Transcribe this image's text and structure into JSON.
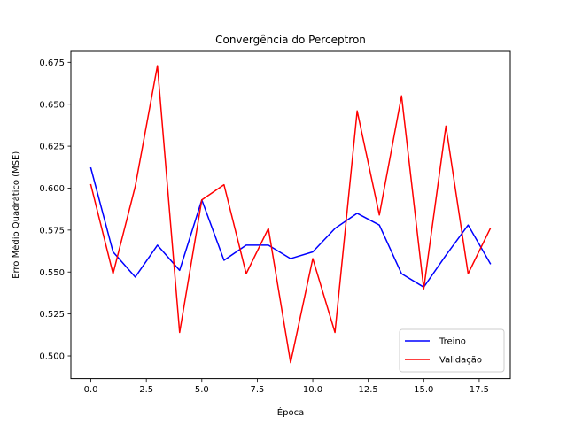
{
  "chart_data": {
    "type": "line",
    "title": "Convergência do Perceptron",
    "xlabel": "Época",
    "ylabel": "Erro Médio Quadrático (MSE)",
    "xlim": [
      -0.9,
      18.9
    ],
    "ylim": [
      0.4865,
      0.6815
    ],
    "x_ticks": [
      0.0,
      2.5,
      5.0,
      7.5,
      10.0,
      12.5,
      15.0,
      17.5
    ],
    "x_tick_labels": [
      "0.0",
      "2.5",
      "5.0",
      "7.5",
      "10.0",
      "12.5",
      "15.0",
      "17.5"
    ],
    "y_ticks": [
      0.5,
      0.525,
      0.55,
      0.575,
      0.6,
      0.625,
      0.65,
      0.675
    ],
    "y_tick_labels": [
      "0.500",
      "0.525",
      "0.550",
      "0.575",
      "0.600",
      "0.625",
      "0.650",
      "0.675"
    ],
    "grid": false,
    "legend_position": "lower right",
    "x": [
      0,
      1,
      2,
      3,
      4,
      5,
      6,
      7,
      8,
      9,
      10,
      11,
      12,
      13,
      14,
      15,
      16,
      17,
      18
    ],
    "series": [
      {
        "name": "Treino",
        "color": "#0000ff",
        "values": [
          0.612,
          0.562,
          0.547,
          0.566,
          0.551,
          0.593,
          0.557,
          0.566,
          0.566,
          0.558,
          0.562,
          0.576,
          0.585,
          0.578,
          0.549,
          0.541,
          0.56,
          0.578,
          0.555
        ]
      },
      {
        "name": "Validação",
        "color": "#ff0000",
        "values": [
          0.602,
          0.549,
          0.601,
          0.673,
          0.514,
          0.593,
          0.602,
          0.549,
          0.576,
          0.496,
          0.558,
          0.514,
          0.646,
          0.584,
          0.655,
          0.54,
          0.637,
          0.549,
          0.576
        ]
      }
    ]
  }
}
